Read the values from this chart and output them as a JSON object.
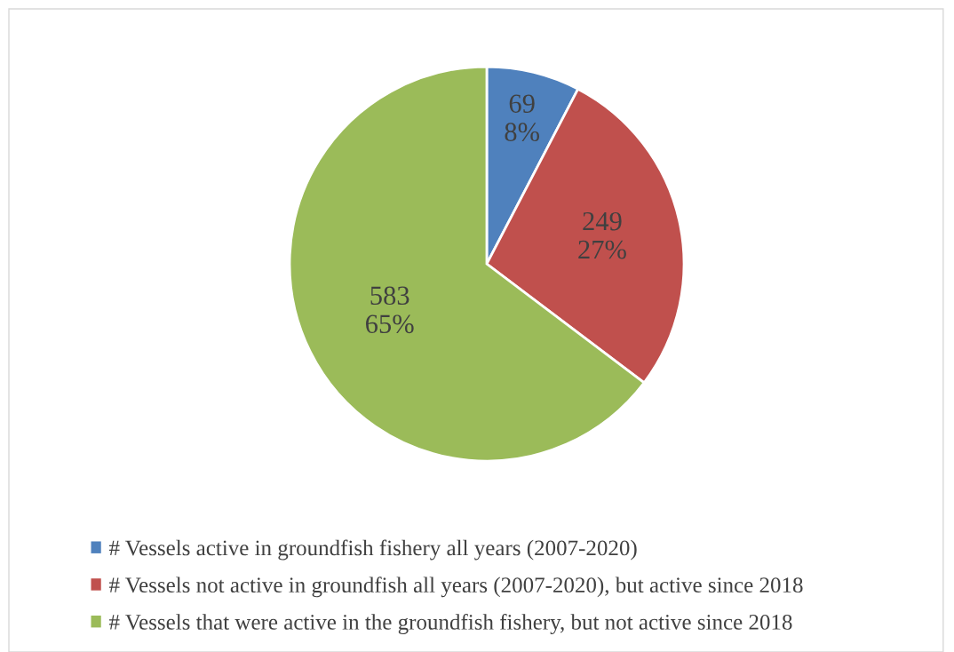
{
  "chart_data": {
    "type": "pie",
    "categories": [
      "# Vessels active in groundfish fishery all years (2007-2020)",
      "# Vessels not active in groundfish all years (2007-2020), but active since 2018",
      "# Vessels that were active in the groundfish fishery, but not active since 2018"
    ],
    "values": [
      69,
      249,
      583
    ],
    "colors": [
      "#4f81bd",
      "#c0504d",
      "#9bbb59"
    ],
    "value_labels": [
      "69\n8%",
      "249\n27%",
      "583\n65%"
    ],
    "legend": "bottom"
  }
}
